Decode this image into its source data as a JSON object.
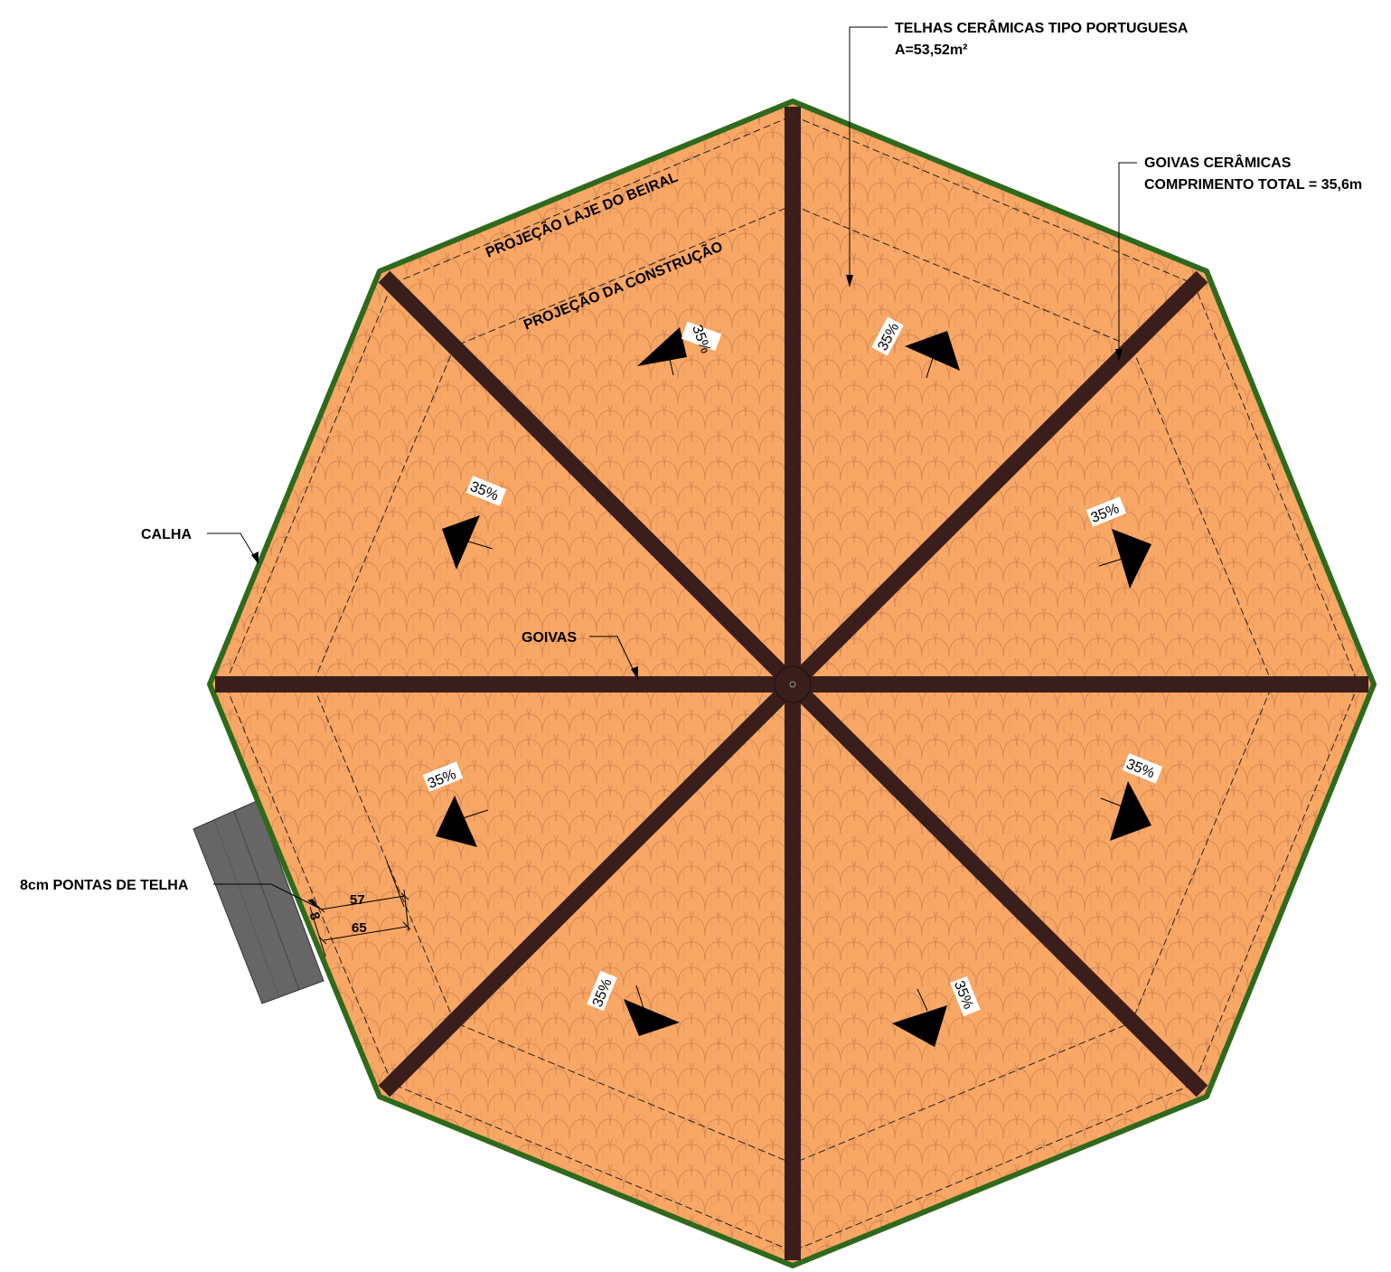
{
  "labels": {
    "telhas_line1": "TELHAS CERÂMICAS TIPO PORTUGUESA",
    "telhas_line2": "A=53,52m²",
    "goivas_ceramicas_line1": "GOIVAS CERÂMICAS",
    "goivas_ceramicas_line2": "COMPRIMENTO TOTAL = 35,6m",
    "calha": "CALHA",
    "goivas": "GOIVAS",
    "pontas_telha": "8cm PONTAS DE TELHA",
    "projecao_laje": "PROJEÇÃO LAJE DO BEIRAL",
    "projecao_construcao": "PROJEÇÃO DA CONSTRUÇÃO"
  },
  "dimensions": {
    "d57": "57",
    "d65": "65",
    "d8": "8"
  },
  "slopes": [
    {
      "id": "n",
      "text": "35%"
    },
    {
      "id": "ne",
      "text": "35%"
    },
    {
      "id": "nw",
      "text": "35%"
    },
    {
      "id": "e",
      "text": "35%"
    },
    {
      "id": "w",
      "text": "35%"
    },
    {
      "id": "se",
      "text": "35%"
    },
    {
      "id": "sw",
      "text": "35%"
    },
    {
      "id": "s",
      "text": "35%"
    }
  ],
  "colors": {
    "tile_fill": "#f9a765",
    "tile_stroke": "#d2824a",
    "goiva": "#3a1e1c",
    "calha": "#2f6a1c",
    "extension": "#4d4d4d"
  }
}
